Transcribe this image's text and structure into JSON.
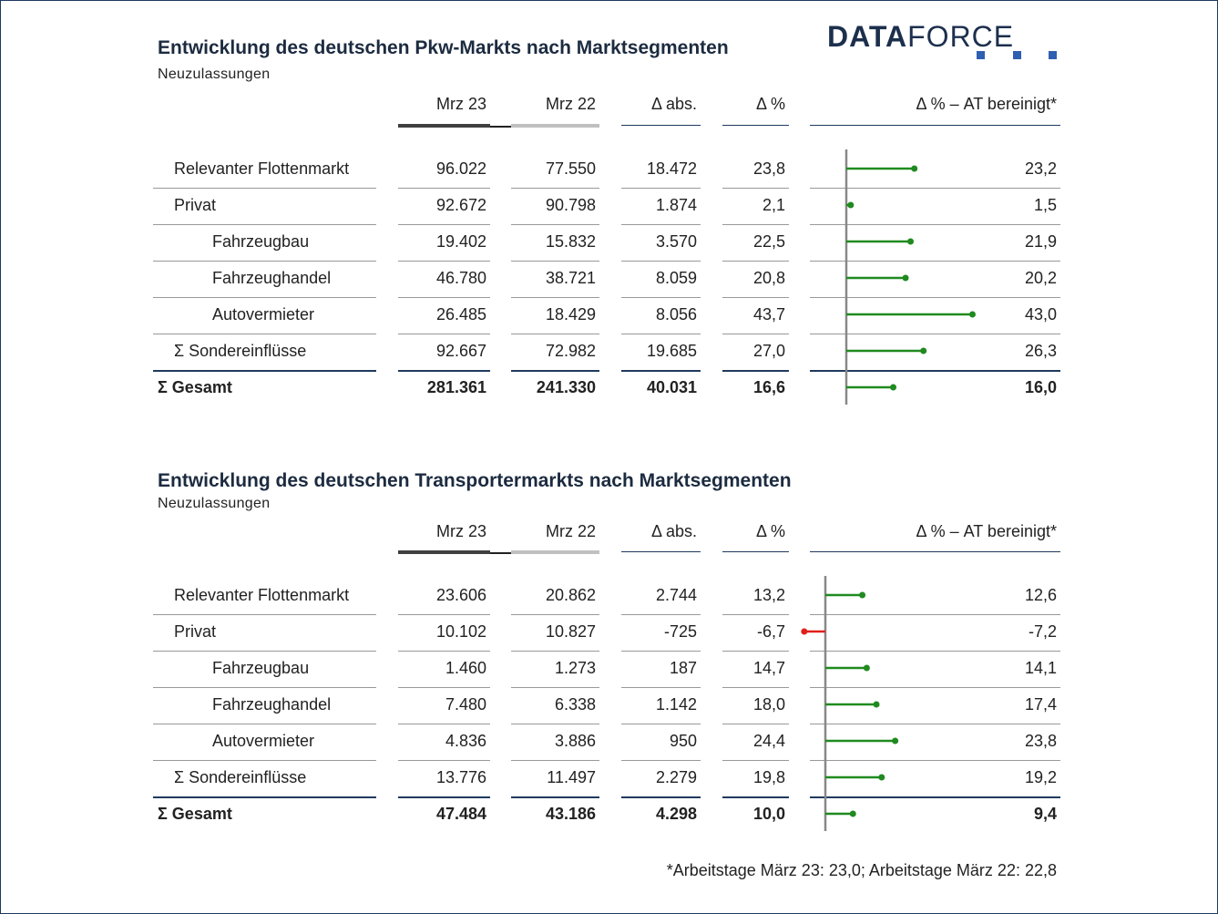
{
  "logo": {
    "text_bold": "DATA",
    "text_light": "FORCE",
    "color": "#1c2f4d",
    "accent": "#2e5fb0"
  },
  "headers": {
    "mrz23": "Mrz 23",
    "mrz22": "Mrz 22",
    "abs": "Δ abs.",
    "pct": "Δ %",
    "at": "Δ % – AT bereinigt*"
  },
  "colors": {
    "positive": "#1f8a1f",
    "negative": "#e0201a",
    "axis": "#888888",
    "header_bar_dark": "#404040",
    "header_bar_light": "#c0c0c0"
  },
  "tables": [
    {
      "title": "Entwicklung des deutschen Pkw-Markts nach Marktsegmenten",
      "subtitle": "Neuzulassungen",
      "rows": [
        {
          "label": "Relevanter Flottenmarkt",
          "indent": 1,
          "mrz23": "96.022",
          "mrz22": "77.550",
          "abs": "18.472",
          "pct": "23,8",
          "at": "23,2",
          "at_value": 23.2,
          "bold": false
        },
        {
          "label": "Privat",
          "indent": 1,
          "mrz23": "92.672",
          "mrz22": "90.798",
          "abs": "1.874",
          "pct": "2,1",
          "at": "1,5",
          "at_value": 1.5,
          "bold": false
        },
        {
          "label": "Fahrzeugbau",
          "indent": 2,
          "mrz23": "19.402",
          "mrz22": "15.832",
          "abs": "3.570",
          "pct": "22,5",
          "at": "21,9",
          "at_value": 21.9,
          "bold": false
        },
        {
          "label": "Fahrzeughandel",
          "indent": 2,
          "mrz23": "46.780",
          "mrz22": "38.721",
          "abs": "8.059",
          "pct": "20,8",
          "at": "20,2",
          "at_value": 20.2,
          "bold": false
        },
        {
          "label": "Autovermieter",
          "indent": 2,
          "mrz23": "26.485",
          "mrz22": "18.429",
          "abs": "8.056",
          "pct": "43,7",
          "at": "43,0",
          "at_value": 43.0,
          "bold": false
        },
        {
          "label": "Σ Sondereinflüsse",
          "indent": 1,
          "mrz23": "92.667",
          "mrz22": "72.982",
          "abs": "19.685",
          "pct": "27,0",
          "at": "26,3",
          "at_value": 26.3,
          "bold": false
        },
        {
          "label": "Σ Gesamt",
          "indent": 0,
          "mrz23": "281.361",
          "mrz22": "241.330",
          "abs": "40.031",
          "pct": "16,6",
          "at": "16,0",
          "at_value": 16.0,
          "bold": true
        }
      ]
    },
    {
      "title": "Entwicklung des deutschen Transportermarkts nach Marktsegmenten",
      "subtitle": "Neuzulassungen",
      "rows": [
        {
          "label": "Relevanter Flottenmarkt",
          "indent": 1,
          "mrz23": "23.606",
          "mrz22": "20.862",
          "abs": "2.744",
          "pct": "13,2",
          "at": "12,6",
          "at_value": 12.6,
          "bold": false
        },
        {
          "label": "Privat",
          "indent": 1,
          "mrz23": "10.102",
          "mrz22": "10.827",
          "abs": "-725",
          "pct": "-6,7",
          "at": "-7,2",
          "at_value": -7.2,
          "bold": false
        },
        {
          "label": "Fahrzeugbau",
          "indent": 2,
          "mrz23": "1.460",
          "mrz22": "1.273",
          "abs": "187",
          "pct": "14,7",
          "at": "14,1",
          "at_value": 14.1,
          "bold": false
        },
        {
          "label": "Fahrzeughandel",
          "indent": 2,
          "mrz23": "7.480",
          "mrz22": "6.338",
          "abs": "1.142",
          "pct": "18,0",
          "at": "17,4",
          "at_value": 17.4,
          "bold": false
        },
        {
          "label": "Autovermieter",
          "indent": 2,
          "mrz23": "4.836",
          "mrz22": "3.886",
          "abs": "950",
          "pct": "24,4",
          "at": "23,8",
          "at_value": 23.8,
          "bold": false
        },
        {
          "label": "Σ Sondereinflüsse",
          "indent": 1,
          "mrz23": "13.776",
          "mrz22": "11.497",
          "abs": "2.279",
          "pct": "19,8",
          "at": "19,2",
          "at_value": 19.2,
          "bold": false
        },
        {
          "label": "Σ Gesamt",
          "indent": 0,
          "mrz23": "47.484",
          "mrz22": "43.186",
          "abs": "4.298",
          "pct": "10,0",
          "at": "9,4",
          "at_value": 9.4,
          "bold": true
        }
      ]
    }
  ],
  "chart_data": [
    {
      "type": "bar",
      "title": "Entwicklung des deutschen Pkw-Markts nach Marktsegmenten",
      "subtitle": "Neuzulassungen",
      "categories": [
        "Relevanter Flottenmarkt",
        "Privat",
        "Fahrzeugbau",
        "Fahrzeughandel",
        "Autovermieter",
        "Σ Sondereinflüsse",
        "Σ Gesamt"
      ],
      "series": [
        {
          "name": "Mrz 23",
          "values": [
            96022,
            92672,
            19402,
            46780,
            26485,
            92667,
            281361
          ]
        },
        {
          "name": "Mrz 22",
          "values": [
            77550,
            90798,
            15832,
            38721,
            18429,
            72982,
            241330
          ]
        },
        {
          "name": "Δ abs.",
          "values": [
            18472,
            1874,
            3570,
            8059,
            8056,
            19685,
            40031
          ]
        },
        {
          "name": "Δ %",
          "values": [
            23.8,
            2.1,
            22.5,
            20.8,
            43.7,
            27.0,
            16.6
          ]
        },
        {
          "name": "Δ % – AT bereinigt*",
          "values": [
            23.2,
            1.5,
            21.9,
            20.2,
            43.0,
            26.3,
            16.0
          ]
        }
      ],
      "orientation": "horizontal lollipop for AT-adjusted change",
      "xlim": [
        -10,
        50
      ]
    },
    {
      "type": "bar",
      "title": "Entwicklung des deutschen Transportermarkts nach Marktsegmenten",
      "subtitle": "Neuzulassungen",
      "categories": [
        "Relevanter Flottenmarkt",
        "Privat",
        "Fahrzeugbau",
        "Fahrzeughandel",
        "Autovermieter",
        "Σ Sondereinflüsse",
        "Σ Gesamt"
      ],
      "series": [
        {
          "name": "Mrz 23",
          "values": [
            23606,
            10102,
            1460,
            7480,
            4836,
            13776,
            47484
          ]
        },
        {
          "name": "Mrz 22",
          "values": [
            20862,
            10827,
            1273,
            6338,
            3886,
            11497,
            43186
          ]
        },
        {
          "name": "Δ abs.",
          "values": [
            2744,
            -725,
            187,
            1142,
            950,
            2279,
            4298
          ]
        },
        {
          "name": "Δ %",
          "values": [
            13.2,
            -6.7,
            14.7,
            18.0,
            24.4,
            19.8,
            10.0
          ]
        },
        {
          "name": "Δ % – AT bereinigt*",
          "values": [
            12.6,
            -7.2,
            14.1,
            17.4,
            23.8,
            19.2,
            9.4
          ]
        }
      ],
      "orientation": "horizontal lollipop for AT-adjusted change",
      "xlim": [
        -10,
        50
      ]
    }
  ],
  "footnote": "*Arbeitstage März 23: 23,0; Arbeitstage März 22: 22,8"
}
